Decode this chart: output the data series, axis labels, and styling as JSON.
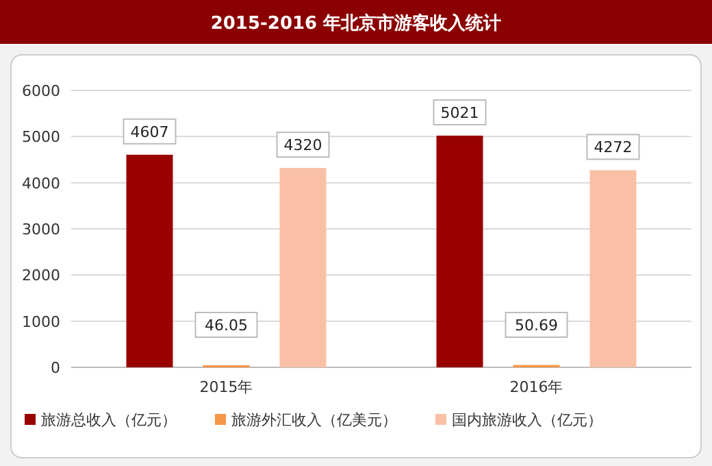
{
  "chart_data": {
    "type": "bar",
    "title": "2015-2016 年北京市游客收入统计",
    "categories": [
      "2015年",
      "2016年"
    ],
    "series": [
      {
        "name": "旅游总收入（亿元）",
        "color": "#990000",
        "values": [
          4607,
          5021
        ]
      },
      {
        "name": "旅游外汇收入（亿美元）",
        "color": "#f79646",
        "values": [
          46.05,
          50.69
        ]
      },
      {
        "name": "国内旅游收入（亿元）",
        "color": "#f9c0a6",
        "values": [
          4320,
          4272
        ]
      }
    ],
    "ylim": [
      0,
      6000
    ],
    "yticks": [
      0,
      1000,
      2000,
      3000,
      4000,
      5000,
      6000
    ],
    "grid": "y",
    "legend": "bottom",
    "data_labels": true
  }
}
